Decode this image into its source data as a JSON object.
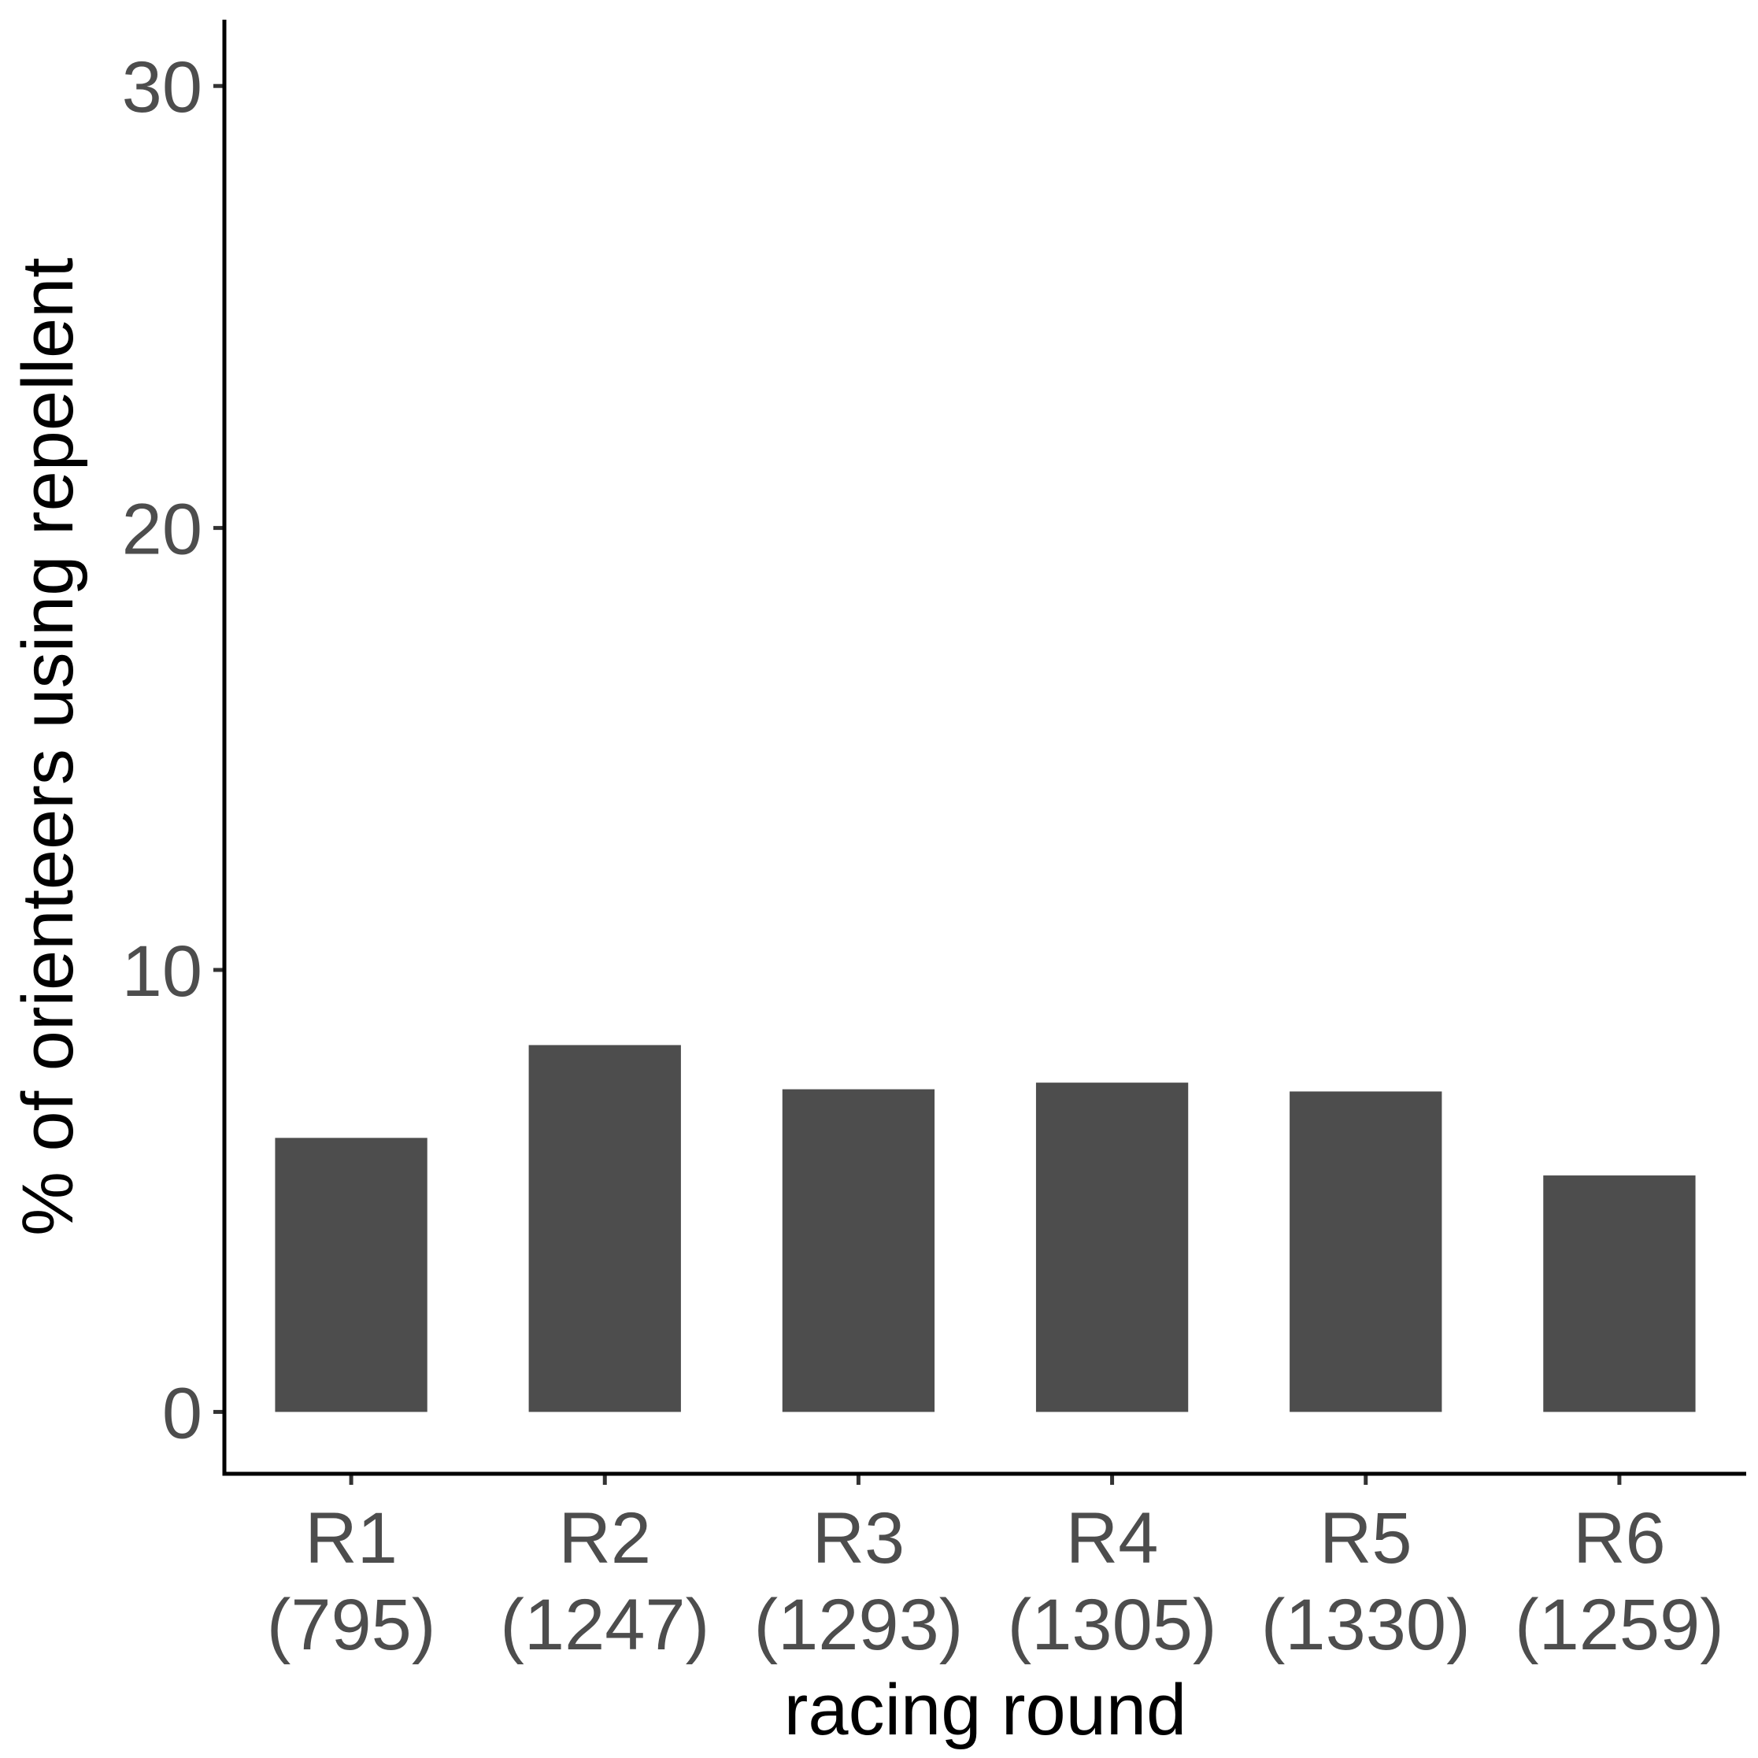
{
  "chart_data": {
    "type": "bar",
    "categories": [
      [
        "R1",
        "(795)"
      ],
      [
        "R2",
        "(1247)"
      ],
      [
        "R3",
        "(1293)"
      ],
      [
        "R4",
        "(1305)"
      ],
      [
        "R5",
        "(1330)"
      ],
      [
        "R6",
        "(1259)"
      ]
    ],
    "values": [
      6.2,
      8.3,
      7.3,
      7.45,
      7.25,
      5.35
    ],
    "xlabel": "racing round",
    "ylabel": "% of orienteers using repellent",
    "yticks": [
      0,
      10,
      20,
      30
    ],
    "ylim": [
      -1.4,
      31.5
    ],
    "grid": false,
    "bar_color": "#4d4d4d"
  }
}
